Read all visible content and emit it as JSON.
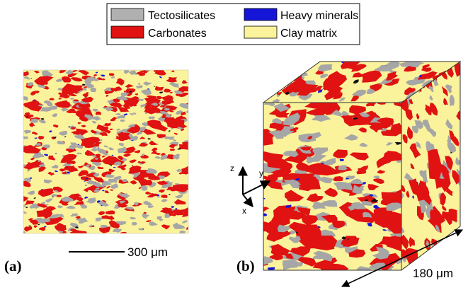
{
  "legend": {
    "items": [
      {
        "label": "Tectosilicates",
        "color": "#b0b0b0"
      },
      {
        "label": "Heavy minerals",
        "color": "#1515d8"
      },
      {
        "label": "Carbonates",
        "color": "#e01212"
      },
      {
        "label": "Clay matrix",
        "color": "#fbf39b"
      }
    ]
  },
  "panel_a": {
    "label": "(a)",
    "scale_label": "300 μm"
  },
  "panel_b": {
    "label": "(b)",
    "scale_label": "180 μm"
  },
  "axes": {
    "z": "z",
    "y": "y",
    "x": "x"
  },
  "colors": {
    "clay": "#fbf39b",
    "tectosilicate": "#a6a6a6",
    "carbonate": "#e01212",
    "heavy": "#1515d8",
    "pore": "#111111"
  }
}
